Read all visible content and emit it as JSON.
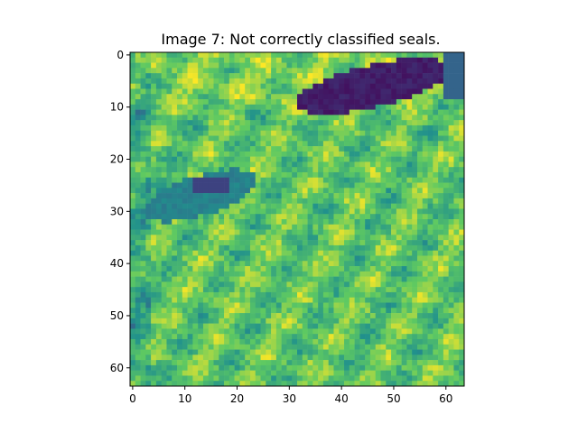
{
  "figure": {
    "title": "Image 7: Not correctly classified seals."
  },
  "image": {
    "type": "heatmap",
    "colormap": "viridis",
    "rows": 64,
    "cols": 64,
    "xlim": [
      -0.5,
      63.5
    ],
    "ylim": [
      63.5,
      -0.5
    ],
    "xticks": [
      0,
      10,
      20,
      30,
      40,
      50,
      60
    ],
    "yticks": [
      0,
      10,
      20,
      30,
      40,
      50,
      60
    ],
    "xtick_labels": [
      "0",
      "10",
      "20",
      "30",
      "40",
      "50",
      "60"
    ],
    "ytick_labels": [
      "0",
      "10",
      "20",
      "30",
      "40",
      "50",
      "60"
    ],
    "content": "grassy field with two seals; dark purple seal at top-right, teal seal at middle-left"
  }
}
